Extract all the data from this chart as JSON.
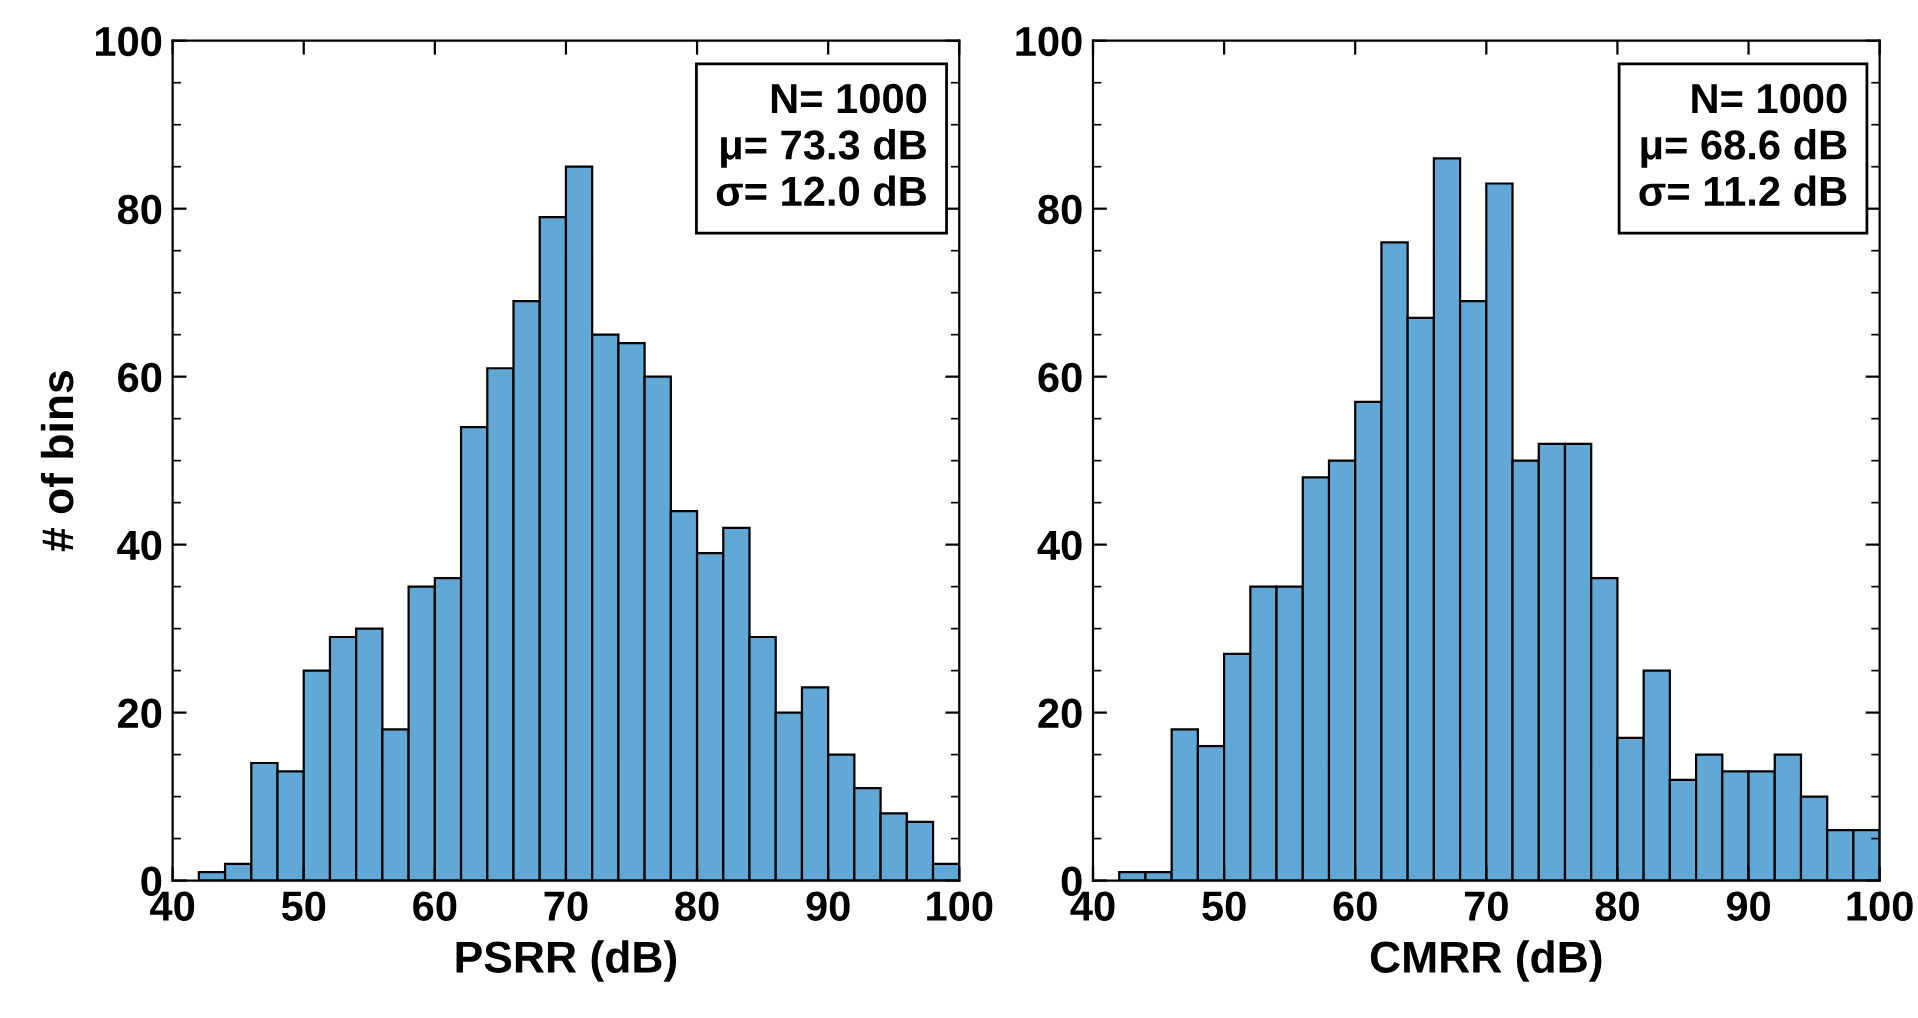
{
  "chart_data": [
    {
      "type": "histogram",
      "xlabel": "PSRR (dB)",
      "ylabel": "# of bins",
      "color": "#62a8d7",
      "bins": [
        42,
        44,
        46,
        48,
        50,
        52,
        54,
        56,
        58,
        60,
        62,
        64,
        66,
        68,
        70,
        72,
        74,
        76,
        78,
        80,
        82,
        84,
        86,
        88,
        90,
        92,
        94,
        96,
        98,
        100
      ],
      "values": [
        1,
        2,
        14,
        13,
        25,
        29,
        30,
        18,
        35,
        36,
        54,
        61,
        69,
        79,
        85,
        65,
        64,
        60,
        44,
        39,
        42,
        29,
        20,
        23,
        15,
        11,
        8,
        7,
        2
      ],
      "xlim": [
        40,
        100
      ],
      "xticks": [
        40,
        50,
        60,
        70,
        80,
        90,
        100
      ],
      "ylim": [
        0,
        100
      ],
      "yticks": [
        0,
        20,
        40,
        60,
        80,
        100
      ],
      "grid": false,
      "annotations": [
        "N= 1000",
        "μ= 73.3 dB",
        "σ= 12.0 dB"
      ]
    },
    {
      "type": "histogram",
      "xlabel": "CMRR (dB)",
      "color": "#62a8d7",
      "bins": [
        42,
        44,
        46,
        48,
        50,
        52,
        54,
        56,
        58,
        60,
        62,
        64,
        66,
        68,
        70,
        72,
        74,
        76,
        78,
        80,
        82,
        84,
        86,
        88,
        90,
        92,
        94,
        96,
        98,
        100
      ],
      "values": [
        1,
        1,
        18,
        16,
        27,
        35,
        35,
        48,
        50,
        57,
        76,
        67,
        86,
        69,
        83,
        50,
        52,
        52,
        36,
        17,
        25,
        12,
        15,
        13,
        13,
        15,
        10,
        6,
        6
      ],
      "xlim": [
        40,
        100
      ],
      "xticks": [
        40,
        50,
        60,
        70,
        80,
        90,
        100
      ],
      "ylim": [
        0,
        100
      ],
      "yticks": [
        0,
        20,
        40,
        60,
        80,
        100
      ],
      "grid": false,
      "annotations": [
        "N= 1000",
        "μ= 68.6 dB",
        "σ= 11.2 dB"
      ]
    }
  ]
}
